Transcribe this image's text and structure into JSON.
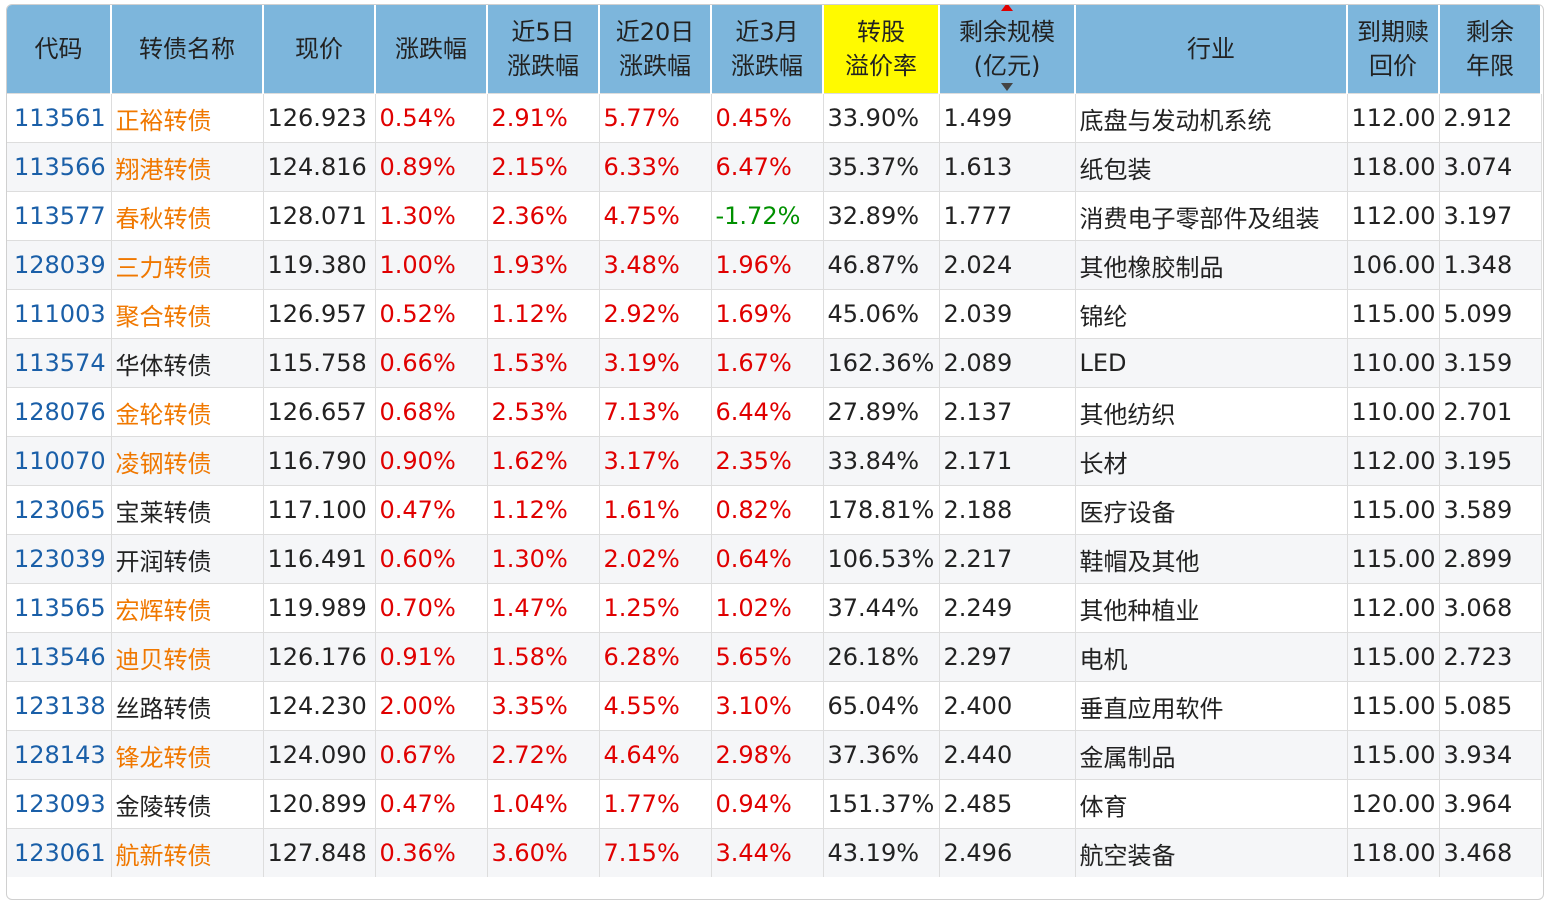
{
  "table": {
    "headers": [
      {
        "key": "code",
        "line1": "代码",
        "line2": ""
      },
      {
        "key": "name",
        "line1": "转债名称",
        "line2": ""
      },
      {
        "key": "price",
        "line1": "现价",
        "line2": ""
      },
      {
        "key": "chg",
        "line1": "涨跌幅",
        "line2": ""
      },
      {
        "key": "chg5",
        "line1": "近5日",
        "line2": "涨跌幅"
      },
      {
        "key": "chg20",
        "line1": "近20日",
        "line2": "涨跌幅"
      },
      {
        "key": "chg3m",
        "line1": "近3月",
        "line2": "涨跌幅"
      },
      {
        "key": "premium",
        "line1": "转股",
        "line2": "溢价率"
      },
      {
        "key": "scale",
        "line1": "剩余规模",
        "line2": "(亿元)"
      },
      {
        "key": "industry",
        "line1": "行业",
        "line2": ""
      },
      {
        "key": "redeem",
        "line1": "到期赎",
        "line2": "回价"
      },
      {
        "key": "years",
        "line1": "剩余",
        "line2": "年限"
      }
    ],
    "highlight_header": "premium",
    "sorted_column": "scale",
    "colors": {
      "header_bg": "#7db6dc",
      "highlight_bg": "#fffa00",
      "code": "#1a5fa8",
      "name_hot": "#f07800",
      "up": "#e00000",
      "down": "#009000"
    },
    "rows": [
      {
        "code": "113561",
        "name": "正裕转债",
        "hot": true,
        "price": "126.923",
        "chg": "0.54%",
        "chg5": "2.91%",
        "chg20": "5.77%",
        "chg3m": "0.45%",
        "premium": "33.90%",
        "scale": "1.499",
        "industry": "底盘与发动机系统",
        "redeem": "112.00",
        "years": "2.912"
      },
      {
        "code": "113566",
        "name": "翔港转债",
        "hot": true,
        "price": "124.816",
        "chg": "0.89%",
        "chg5": "2.15%",
        "chg20": "6.33%",
        "chg3m": "6.47%",
        "premium": "35.37%",
        "scale": "1.613",
        "industry": "纸包装",
        "redeem": "118.00",
        "years": "3.074"
      },
      {
        "code": "113577",
        "name": "春秋转债",
        "hot": true,
        "price": "128.071",
        "chg": "1.30%",
        "chg5": "2.36%",
        "chg20": "4.75%",
        "chg3m": "-1.72%",
        "premium": "32.89%",
        "scale": "1.777",
        "industry": "消费电子零部件及组装",
        "redeem": "112.00",
        "years": "3.197"
      },
      {
        "code": "128039",
        "name": "三力转债",
        "hot": true,
        "price": "119.380",
        "chg": "1.00%",
        "chg5": "1.93%",
        "chg20": "3.48%",
        "chg3m": "1.96%",
        "premium": "46.87%",
        "scale": "2.024",
        "industry": "其他橡胶制品",
        "redeem": "106.00",
        "years": "1.348"
      },
      {
        "code": "111003",
        "name": "聚合转债",
        "hot": true,
        "price": "126.957",
        "chg": "0.52%",
        "chg5": "1.12%",
        "chg20": "2.92%",
        "chg3m": "1.69%",
        "premium": "45.06%",
        "scale": "2.039",
        "industry": "锦纶",
        "redeem": "115.00",
        "years": "5.099"
      },
      {
        "code": "113574",
        "name": "华体转债",
        "hot": false,
        "price": "115.758",
        "chg": "0.66%",
        "chg5": "1.53%",
        "chg20": "3.19%",
        "chg3m": "1.67%",
        "premium": "162.36%",
        "scale": "2.089",
        "industry": "LED",
        "redeem": "110.00",
        "years": "3.159"
      },
      {
        "code": "128076",
        "name": "金轮转债",
        "hot": true,
        "price": "126.657",
        "chg": "0.68%",
        "chg5": "2.53%",
        "chg20": "7.13%",
        "chg3m": "6.44%",
        "premium": "27.89%",
        "scale": "2.137",
        "industry": "其他纺织",
        "redeem": "110.00",
        "years": "2.701"
      },
      {
        "code": "110070",
        "name": "凌钢转债",
        "hot": true,
        "price": "116.790",
        "chg": "0.90%",
        "chg5": "1.62%",
        "chg20": "3.17%",
        "chg3m": "2.35%",
        "premium": "33.84%",
        "scale": "2.171",
        "industry": "长材",
        "redeem": "112.00",
        "years": "3.195"
      },
      {
        "code": "123065",
        "name": "宝莱转债",
        "hot": false,
        "price": "117.100",
        "chg": "0.47%",
        "chg5": "1.12%",
        "chg20": "1.61%",
        "chg3m": "0.82%",
        "premium": "178.81%",
        "scale": "2.188",
        "industry": "医疗设备",
        "redeem": "115.00",
        "years": "3.589"
      },
      {
        "code": "123039",
        "name": "开润转债",
        "hot": false,
        "price": "116.491",
        "chg": "0.60%",
        "chg5": "1.30%",
        "chg20": "2.02%",
        "chg3m": "0.64%",
        "premium": "106.53%",
        "scale": "2.217",
        "industry": "鞋帽及其他",
        "redeem": "115.00",
        "years": "2.899"
      },
      {
        "code": "113565",
        "name": "宏辉转债",
        "hot": true,
        "price": "119.989",
        "chg": "0.70%",
        "chg5": "1.47%",
        "chg20": "1.25%",
        "chg3m": "1.02%",
        "premium": "37.44%",
        "scale": "2.249",
        "industry": "其他种植业",
        "redeem": "112.00",
        "years": "3.068"
      },
      {
        "code": "113546",
        "name": "迪贝转债",
        "hot": true,
        "price": "126.176",
        "chg": "0.91%",
        "chg5": "1.58%",
        "chg20": "6.28%",
        "chg3m": "5.65%",
        "premium": "26.18%",
        "scale": "2.297",
        "industry": "电机",
        "redeem": "115.00",
        "years": "2.723"
      },
      {
        "code": "123138",
        "name": "丝路转债",
        "hot": false,
        "price": "124.230",
        "chg": "2.00%",
        "chg5": "3.35%",
        "chg20": "4.55%",
        "chg3m": "3.10%",
        "premium": "65.04%",
        "scale": "2.400",
        "industry": "垂直应用软件",
        "redeem": "115.00",
        "years": "5.085"
      },
      {
        "code": "128143",
        "name": "锋龙转债",
        "hot": true,
        "price": "124.090",
        "chg": "0.67%",
        "chg5": "2.72%",
        "chg20": "4.64%",
        "chg3m": "2.98%",
        "premium": "37.36%",
        "scale": "2.440",
        "industry": "金属制品",
        "redeem": "115.00",
        "years": "3.934"
      },
      {
        "code": "123093",
        "name": "金陵转债",
        "hot": false,
        "price": "120.899",
        "chg": "0.47%",
        "chg5": "1.04%",
        "chg20": "1.77%",
        "chg3m": "0.94%",
        "premium": "151.37%",
        "scale": "2.485",
        "industry": "体育",
        "redeem": "120.00",
        "years": "3.964"
      },
      {
        "code": "123061",
        "name": "航新转债",
        "hot": true,
        "price": "127.848",
        "chg": "0.36%",
        "chg5": "3.60%",
        "chg20": "7.15%",
        "chg3m": "3.44%",
        "premium": "43.19%",
        "scale": "2.496",
        "industry": "航空装备",
        "redeem": "118.00",
        "years": "3.468"
      }
    ]
  }
}
